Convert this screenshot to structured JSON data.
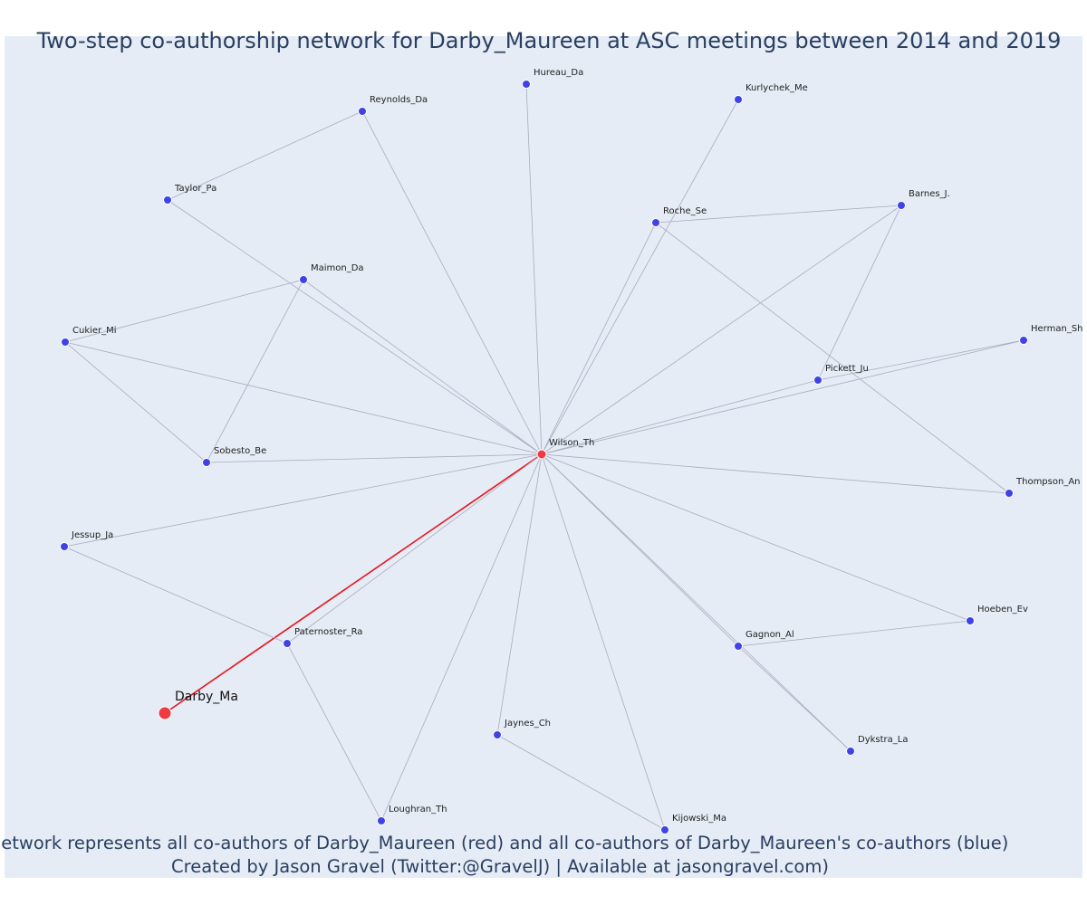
{
  "title": "Two-step co-authorship network for Darby_Maureen at ASC meetings between 2014 and 2019",
  "caption": {
    "line1": "Network represents all co-authors of Darby_Maureen (red) and all co-authors of Darby_Maureen's co-authors (blue)",
    "line2": "Created by Jason Gravel (Twitter:@GravelJ) | Available at jasongravel.com)"
  },
  "colors": {
    "focal": "#ee3b43",
    "coauthor": "#3f43e6",
    "focal_edge": "#e8141b",
    "edge": "#a9abbd",
    "background": "#e5ecf6"
  },
  "focal_node": "Darby_Ma",
  "nodes": [
    {
      "id": "Darby_Ma",
      "label": "Darby_Ma",
      "group": "focal"
    },
    {
      "id": "Wilson_Th",
      "label": "Wilson_Th",
      "group": "coauthor-direct"
    },
    {
      "id": "Hureau_Da",
      "label": "Hureau_Da",
      "group": "coauthor"
    },
    {
      "id": "Kurlychek_Me",
      "label": "Kurlychek_Me",
      "group": "coauthor"
    },
    {
      "id": "Reynolds_Da",
      "label": "Reynolds_Da",
      "group": "coauthor"
    },
    {
      "id": "Taylor_Pa",
      "label": "Taylor_Pa",
      "group": "coauthor"
    },
    {
      "id": "Barnes_J.",
      "label": "Barnes_J.",
      "group": "coauthor"
    },
    {
      "id": "Roche_Se",
      "label": "Roche_Se",
      "group": "coauthor"
    },
    {
      "id": "Maimon_Da",
      "label": "Maimon_Da",
      "group": "coauthor"
    },
    {
      "id": "Cukier_Mi",
      "label": "Cukier_Mi",
      "group": "coauthor"
    },
    {
      "id": "Herman_Sh",
      "label": "Herman_Sh",
      "group": "coauthor"
    },
    {
      "id": "Pickett_Ju",
      "label": "Pickett_Ju",
      "group": "coauthor"
    },
    {
      "id": "Sobesto_Be",
      "label": "Sobesto_Be",
      "group": "coauthor"
    },
    {
      "id": "Thompson_An",
      "label": "Thompson_An",
      "group": "coauthor"
    },
    {
      "id": "Jessup_Ja",
      "label": "Jessup_Ja",
      "group": "coauthor"
    },
    {
      "id": "Hoeben_Ev",
      "label": "Hoeben_Ev",
      "group": "coauthor"
    },
    {
      "id": "Paternoster_Ra",
      "label": "Paternoster_Ra",
      "group": "coauthor"
    },
    {
      "id": "Gagnon_Al",
      "label": "Gagnon_Al",
      "group": "coauthor"
    },
    {
      "id": "Jaynes_Ch",
      "label": "Jaynes_Ch",
      "group": "coauthor"
    },
    {
      "id": "Dykstra_La",
      "label": "Dykstra_La",
      "group": "coauthor"
    },
    {
      "id": "Loughran_Th",
      "label": "Loughran_Th",
      "group": "coauthor"
    },
    {
      "id": "Kijowski_Ma",
      "label": "Kijowski_Ma",
      "group": "coauthor"
    }
  ],
  "edges": [
    {
      "source": "Darby_Ma",
      "target": "Wilson_Th",
      "focal": true
    },
    {
      "source": "Wilson_Th",
      "target": "Hureau_Da"
    },
    {
      "source": "Wilson_Th",
      "target": "Kurlychek_Me"
    },
    {
      "source": "Wilson_Th",
      "target": "Reynolds_Da"
    },
    {
      "source": "Wilson_Th",
      "target": "Taylor_Pa"
    },
    {
      "source": "Wilson_Th",
      "target": "Barnes_J."
    },
    {
      "source": "Wilson_Th",
      "target": "Roche_Se"
    },
    {
      "source": "Wilson_Th",
      "target": "Maimon_Da"
    },
    {
      "source": "Wilson_Th",
      "target": "Cukier_Mi"
    },
    {
      "source": "Wilson_Th",
      "target": "Herman_Sh"
    },
    {
      "source": "Wilson_Th",
      "target": "Pickett_Ju"
    },
    {
      "source": "Wilson_Th",
      "target": "Sobesto_Be"
    },
    {
      "source": "Wilson_Th",
      "target": "Thompson_An"
    },
    {
      "source": "Wilson_Th",
      "target": "Jessup_Ja"
    },
    {
      "source": "Wilson_Th",
      "target": "Hoeben_Ev"
    },
    {
      "source": "Wilson_Th",
      "target": "Paternoster_Ra"
    },
    {
      "source": "Wilson_Th",
      "target": "Gagnon_Al"
    },
    {
      "source": "Wilson_Th",
      "target": "Jaynes_Ch"
    },
    {
      "source": "Wilson_Th",
      "target": "Dykstra_La"
    },
    {
      "source": "Wilson_Th",
      "target": "Loughran_Th"
    },
    {
      "source": "Wilson_Th",
      "target": "Kijowski_Ma"
    },
    {
      "source": "Reynolds_Da",
      "target": "Taylor_Pa"
    },
    {
      "source": "Roche_Se",
      "target": "Barnes_J."
    },
    {
      "source": "Barnes_J.",
      "target": "Pickett_Ju"
    },
    {
      "source": "Roche_Se",
      "target": "Thompson_An"
    },
    {
      "source": "Pickett_Ju",
      "target": "Herman_Sh"
    },
    {
      "source": "Maimon_Da",
      "target": "Cukier_Mi"
    },
    {
      "source": "Maimon_Da",
      "target": "Sobesto_Be"
    },
    {
      "source": "Cukier_Mi",
      "target": "Sobesto_Be"
    },
    {
      "source": "Jessup_Ja",
      "target": "Paternoster_Ra"
    },
    {
      "source": "Paternoster_Ra",
      "target": "Loughran_Th"
    },
    {
      "source": "Gagnon_Al",
      "target": "Hoeben_Ev"
    },
    {
      "source": "Gagnon_Al",
      "target": "Dykstra_La"
    },
    {
      "source": "Jaynes_Ch",
      "target": "Kijowski_Ma"
    }
  ]
}
